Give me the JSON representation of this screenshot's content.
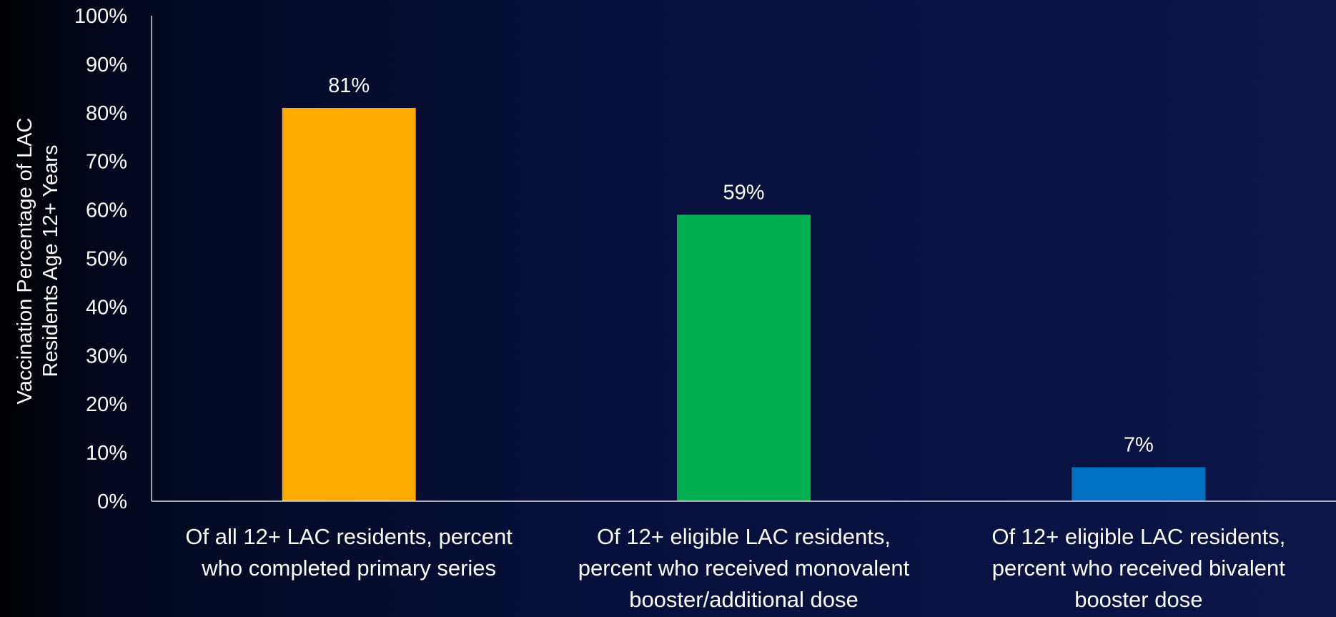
{
  "chart_data": {
    "type": "bar",
    "title": "",
    "xlabel": "",
    "ylabel_lines": [
      "Vaccination Percentage of LAC",
      "Residents Age 12+ Years"
    ],
    "ylim": [
      0,
      100
    ],
    "yticks": [
      0,
      10,
      20,
      30,
      40,
      50,
      60,
      70,
      80,
      90,
      100
    ],
    "ytick_suffix": "%",
    "categories": [
      [
        "Of all 12+ LAC residents, percent",
        "who completed primary series"
      ],
      [
        "Of 12+ eligible LAC residents,",
        "percent who received monovalent",
        "booster/additional dose"
      ],
      [
        "Of 12+ eligible LAC residents,",
        "percent who received bivalent",
        "booster dose"
      ]
    ],
    "values": [
      81,
      59,
      7
    ],
    "data_labels": [
      "81%",
      "59%",
      "7%"
    ],
    "colors": [
      "#FFAA00",
      "#00B050",
      "#0070C0"
    ],
    "grid": false,
    "legend": "none"
  }
}
